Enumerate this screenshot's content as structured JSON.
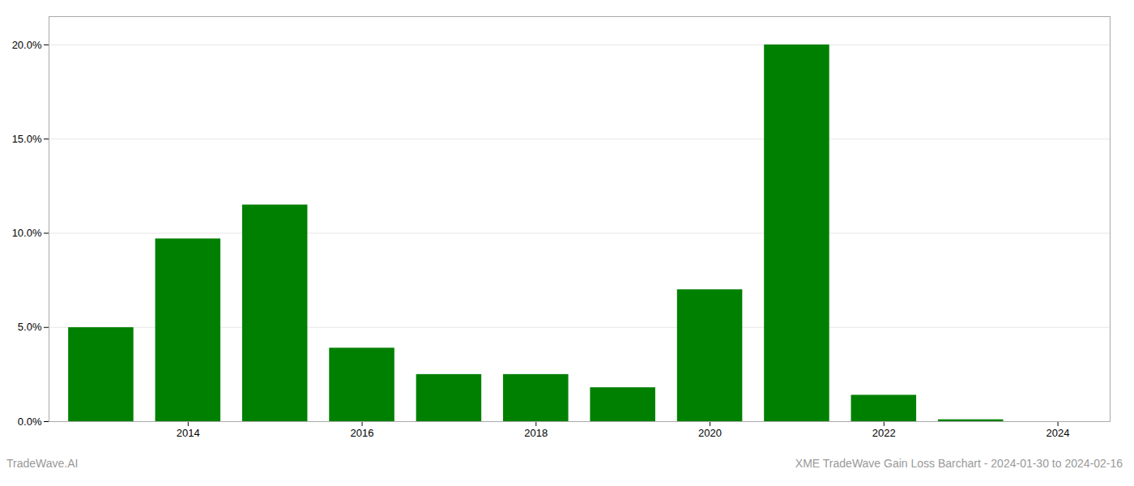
{
  "chart_data": {
    "type": "bar",
    "title": "XME TradeWave Gain Loss Barchart - 2024-01-30 to 2024-02-16",
    "annotations": [
      "TradeWave.AI"
    ],
    "x": [
      2013,
      2014,
      2015,
      2016,
      2017,
      2018,
      2019,
      2020,
      2021,
      2022,
      2023
    ],
    "values": [
      0.0499,
      0.097,
      0.115,
      0.039,
      0.025,
      0.025,
      0.018,
      0.07,
      0.2,
      0.014,
      0.001
    ],
    "color": "#008000",
    "xlim": [
      2012.4,
      2024.6
    ],
    "xticks": [
      2014,
      2016,
      2018,
      2020,
      2022,
      2024
    ],
    "ylim": [
      0,
      0.215
    ],
    "yticks": [
      {
        "value": 0.0,
        "label": "0.0%"
      },
      {
        "value": 0.05,
        "label": "5.0%"
      },
      {
        "value": 0.1,
        "label": "10.0%"
      },
      {
        "value": 0.15,
        "label": "15.0%"
      },
      {
        "value": 0.2,
        "label": "20.0%"
      }
    ],
    "grid": true
  }
}
